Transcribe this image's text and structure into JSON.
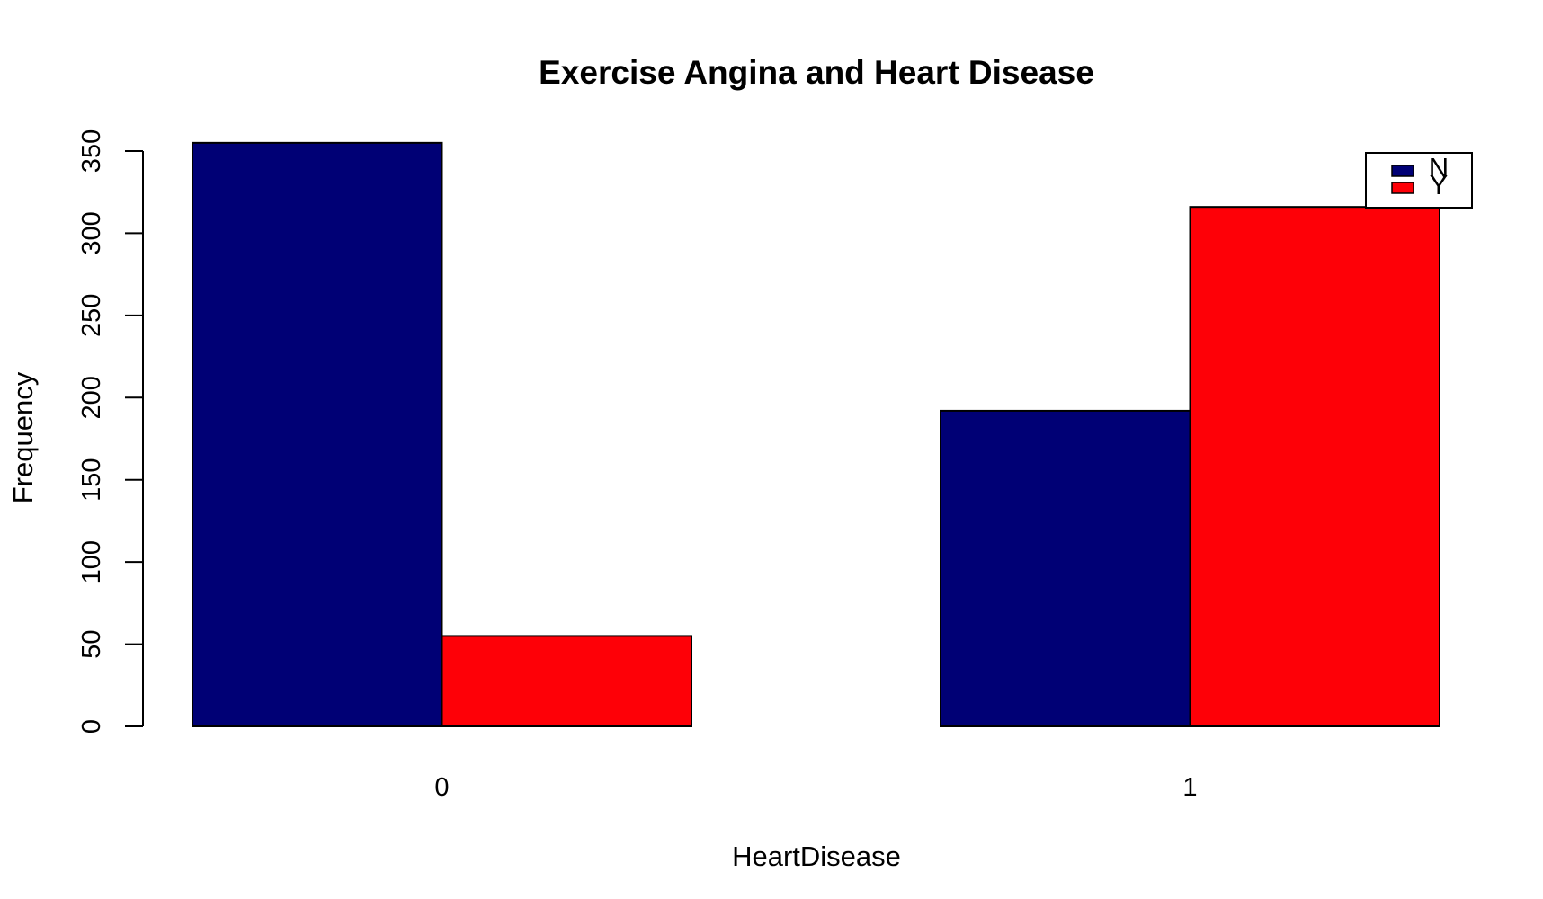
{
  "chart_data": {
    "type": "bar",
    "title": "Exercise Angina and Heart Disease",
    "xlabel": "HeartDisease",
    "ylabel": "Frequency",
    "categories": [
      "0",
      "1"
    ],
    "ylim": [
      0,
      350
    ],
    "yticks": [
      "0",
      "50",
      "100",
      "150",
      "200",
      "250",
      "300",
      "350"
    ],
    "grid": false,
    "legend_position": "top-right",
    "series": [
      {
        "name": "N",
        "color": "#000075",
        "values": [
          355,
          192
        ]
      },
      {
        "name": "Y",
        "color": "#fe0007",
        "values": [
          55,
          316
        ]
      }
    ]
  }
}
